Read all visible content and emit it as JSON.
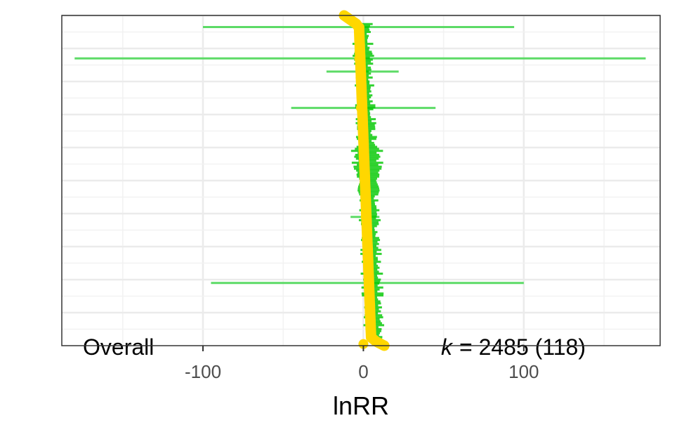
{
  "chart_data": {
    "type": "forest-orchard",
    "xlabel": "lnRR",
    "xlim": [
      -188,
      185
    ],
    "xticks": [
      -100,
      0,
      100
    ],
    "xtick_labels": [
      "-100",
      "0",
      "100"
    ],
    "grid": true,
    "overall_label": "Overall",
    "k_label": "k",
    "k_value": "= 2485 (118)",
    "overall_estimate": 0,
    "colors": {
      "interval": "#5cdb66",
      "estimate": "#ffd700",
      "trunk": "#00c800",
      "panel_border": "#333333",
      "grid_major": "#ebebeb"
    },
    "wide_intervals": [
      {
        "pos": 0.965,
        "lo": -100,
        "hi": 94,
        "est": -2
      },
      {
        "pos": 0.87,
        "lo": -180,
        "hi": 176,
        "est": -3
      },
      {
        "pos": 0.83,
        "lo": -23,
        "hi": 22,
        "est": -2
      },
      {
        "pos": 0.72,
        "lo": -45,
        "hi": 45,
        "est": -2
      },
      {
        "pos": 0.39,
        "lo": -8,
        "hi": 10,
        "est": 1
      },
      {
        "pos": 0.19,
        "lo": -95,
        "hi": 100,
        "est": 3
      }
    ]
  }
}
